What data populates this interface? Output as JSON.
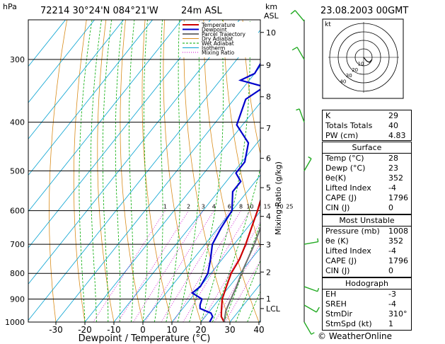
{
  "header": {
    "pressure_unit": "hPa",
    "station_line": "72214  30°24'N  084°21'W",
    "elevation": "24m  ASL",
    "km_label": "km",
    "asl_label": "ASL",
    "datetime": "23.08.2003  00GMT"
  },
  "legend": {
    "items": [
      {
        "label": "Temperature",
        "color": "#cc0000"
      },
      {
        "label": "Dewpoint",
        "color": "#0000cc"
      },
      {
        "label": "Parcel Trajectory",
        "color": "#707070"
      },
      {
        "label": "Dry Adiabat",
        "color": "#d98c1a"
      },
      {
        "label": "Wet Adiabat",
        "color": "#00aa00"
      },
      {
        "label": "Isotherm",
        "color": "#00a0d0"
      },
      {
        "label": "Mixing Ratio",
        "color": "#cc00cc"
      }
    ]
  },
  "hodograph": {
    "unit_label": "kt",
    "ring_labels": [
      "10",
      "20",
      "30",
      "40"
    ]
  },
  "indices": {
    "basic": [
      {
        "label": "K",
        "value": "29"
      },
      {
        "label": "Totals Totals",
        "value": "40"
      },
      {
        "label": "PW (cm)",
        "value": "4.83"
      }
    ],
    "surface": {
      "title": "Surface",
      "rows": [
        {
          "label": "Temp (°C)",
          "value": "28"
        },
        {
          "label": "Dewp (°C)",
          "value": "23"
        },
        {
          "label": "θe(K)",
          "value": "352"
        },
        {
          "label": "Lifted Index",
          "value": "-4"
        },
        {
          "label": "CAPE (J)",
          "value": "1796"
        },
        {
          "label": "CIN (J)",
          "value": "0"
        }
      ]
    },
    "most_unstable": {
      "title": "Most Unstable",
      "rows": [
        {
          "label": "Pressure (mb)",
          "value": "1008"
        },
        {
          "label": "θe (K)",
          "value": "352"
        },
        {
          "label": "Lifted Index",
          "value": "-4"
        },
        {
          "label": "CAPE (J)",
          "value": "1796"
        },
        {
          "label": "CIN (J)",
          "value": "0"
        }
      ]
    },
    "hodograph_box": {
      "title": "Hodograph",
      "rows": [
        {
          "label": "EH",
          "value": "-3"
        },
        {
          "label": "SREH",
          "value": "-4"
        },
        {
          "label": "StmDir",
          "value": "310°"
        },
        {
          "label": "StmSpd (kt)",
          "value": "1"
        }
      ]
    }
  },
  "brand": "© WeatherOnline",
  "chart_data": {
    "type": "line",
    "title": "72214  30°24'N  084°21'W",
    "xlabel": "Dewpoint / Temperature (°C)",
    "ylabel": "hPa",
    "right_axis_label": "Mixing Ratio (g/kg)",
    "xlim": [
      -40,
      40
    ],
    "pressure_range": [
      250,
      1000
    ],
    "pressure_ticks": [
      300,
      400,
      500,
      600,
      700,
      800,
      900,
      1000
    ],
    "x_ticks": [
      -30,
      -20,
      -10,
      0,
      10,
      20,
      30,
      40
    ],
    "height_ticks_km": [
      {
        "label": "10",
        "p": 265
      },
      {
        "label": "9",
        "p": 308
      },
      {
        "label": "8",
        "p": 356
      },
      {
        "label": "7",
        "p": 411
      },
      {
        "label": "6",
        "p": 472
      },
      {
        "label": "5",
        "p": 540
      },
      {
        "label": "4",
        "p": 616
      },
      {
        "label": "3",
        "p": 701
      },
      {
        "label": "2",
        "p": 795
      },
      {
        "label": "1",
        "p": 898
      },
      {
        "label": "LCL",
        "p": 940
      }
    ],
    "mixing_ratio_labels": [
      "1",
      "2",
      "3",
      "4",
      "6",
      "8",
      "10",
      "15",
      "20",
      "25"
    ],
    "mixing_ratio_values": [
      1,
      2,
      3,
      4,
      6,
      8,
      10,
      15,
      20,
      25
    ],
    "series": [
      {
        "name": "Temperature",
        "color": "#cc0000",
        "points": [
          [
            1000,
            28
          ],
          [
            975,
            25.5
          ],
          [
            950,
            24
          ],
          [
            925,
            22.5
          ],
          [
            900,
            21
          ],
          [
            850,
            19
          ],
          [
            800,
            17
          ],
          [
            750,
            16
          ],
          [
            700,
            14
          ],
          [
            650,
            11.5
          ],
          [
            600,
            8.8
          ],
          [
            550,
            5.5
          ],
          [
            500,
            1.5
          ],
          [
            450,
            -3.5
          ],
          [
            400,
            -8
          ],
          [
            350,
            -14.5
          ],
          [
            300,
            -23
          ],
          [
            275,
            -27.5
          ],
          [
            250,
            -32
          ]
        ]
      },
      {
        "name": "Dewpoint",
        "color": "#0000cc",
        "points": [
          [
            1000,
            23
          ],
          [
            975,
            22.5
          ],
          [
            960,
            21
          ],
          [
            940,
            16
          ],
          [
            925,
            15
          ],
          [
            900,
            14
          ],
          [
            875,
            9
          ],
          [
            850,
            10
          ],
          [
            800,
            9
          ],
          [
            750,
            6
          ],
          [
            700,
            2.5
          ],
          [
            650,
            1
          ],
          [
            600,
            0
          ],
          [
            550,
            -5
          ],
          [
            525,
            -5
          ],
          [
            505,
            -9
          ],
          [
            480,
            -9
          ],
          [
            440,
            -13
          ],
          [
            405,
            -22
          ],
          [
            360,
            -26
          ],
          [
            340,
            -23
          ],
          [
            330,
            -33
          ],
          [
            320,
            -30
          ],
          [
            300,
            -31
          ],
          [
            280,
            -33
          ],
          [
            260,
            -38
          ],
          [
            250,
            -40
          ]
        ]
      },
      {
        "name": "Parcel Trajectory",
        "color": "#707070",
        "points": [
          [
            1000,
            28
          ],
          [
            950,
            25.5
          ],
          [
            900,
            24
          ],
          [
            850,
            22.5
          ],
          [
            800,
            20.5
          ],
          [
            700,
            17
          ],
          [
            600,
            12
          ],
          [
            500,
            5
          ],
          [
            400,
            -5
          ],
          [
            350,
            -11
          ],
          [
            300,
            -18
          ],
          [
            275,
            -22
          ],
          [
            255,
            -26
          ]
        ]
      }
    ],
    "winds": [
      {
        "p": 1000,
        "dir": 150,
        "spd": 5
      },
      {
        "p": 925,
        "dir": 120,
        "spd": 10
      },
      {
        "p": 850,
        "dir": 110,
        "spd": 5
      },
      {
        "p": 700,
        "dir": 80,
        "spd": 5
      },
      {
        "p": 500,
        "dir": 30,
        "spd": 5
      },
      {
        "p": 400,
        "dir": 340,
        "spd": 5
      },
      {
        "p": 300,
        "dir": 330,
        "spd": 10
      },
      {
        "p": 250,
        "dir": 320,
        "spd": 10
      }
    ]
  }
}
